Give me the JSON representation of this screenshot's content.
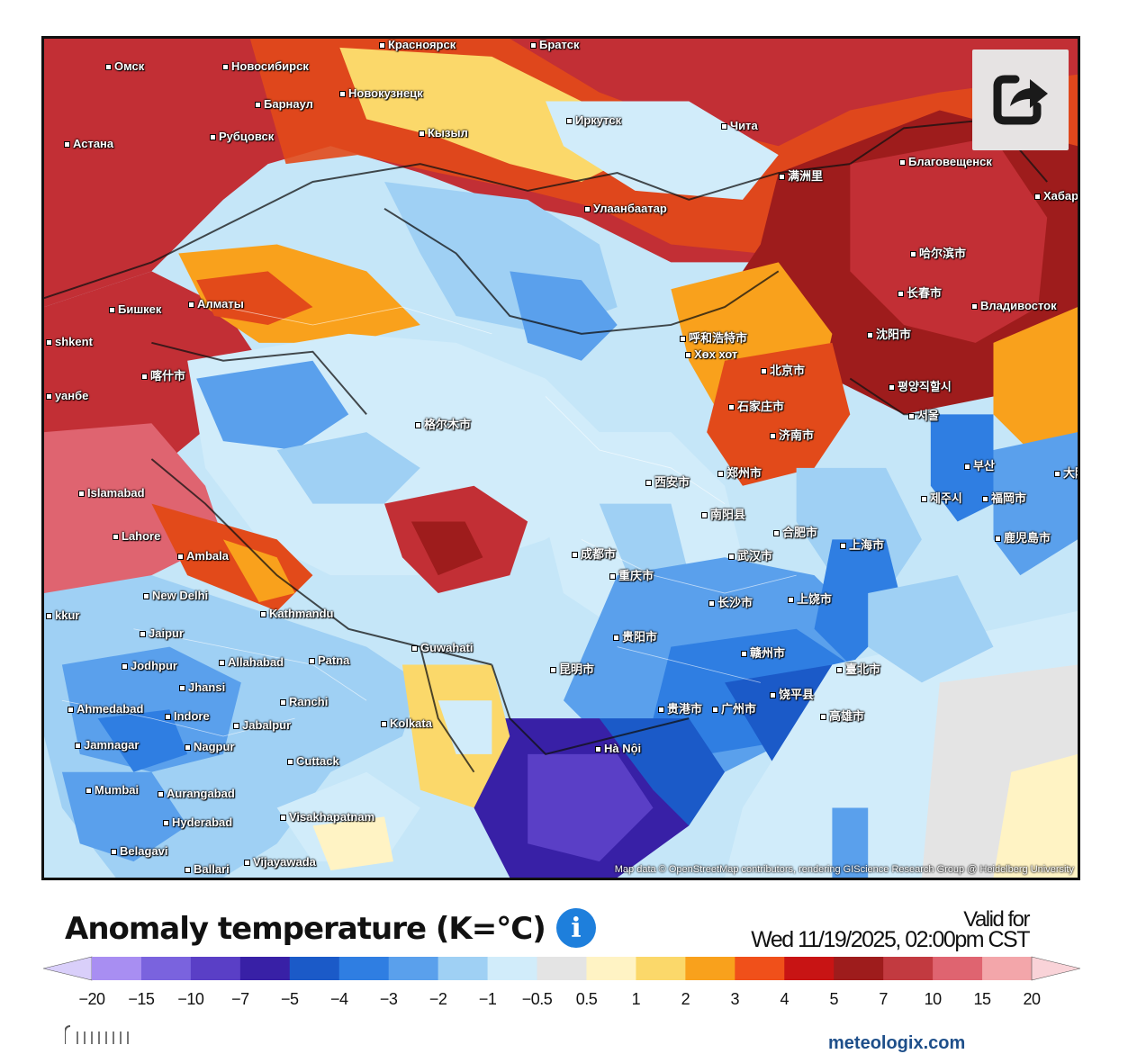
{
  "map": {
    "attribution": "Map data © OpenStreetMap contributors, rendering GIScience Research Group @ Heidelberg University",
    "cities": [
      {
        "name": "Омск"
      },
      {
        "name": "Новосибирск"
      },
      {
        "name": "Красноярск"
      },
      {
        "name": "Братск"
      },
      {
        "name": "Барнаул"
      },
      {
        "name": "Новокузнецк"
      },
      {
        "name": "Рубцовск"
      },
      {
        "name": "Астана"
      },
      {
        "name": "Кызыл"
      },
      {
        "name": "Иркутск"
      },
      {
        "name": "Чита"
      },
      {
        "name": "Улаанбаатар"
      },
      {
        "name": "满洲里"
      },
      {
        "name": "Благовещенск"
      },
      {
        "name": "Хабаро"
      },
      {
        "name": "哈尔滨市"
      },
      {
        "name": "长春市"
      },
      {
        "name": "Владивосток"
      },
      {
        "name": "沈阳市"
      },
      {
        "name": "Бишкек"
      },
      {
        "name": "Алматы"
      },
      {
        "name": "shkent"
      },
      {
        "name": "呼和浩特市"
      },
      {
        "name": "Хөх хот"
      },
      {
        "name": "北京市"
      },
      {
        "name": "평양직할시"
      },
      {
        "name": "서울"
      },
      {
        "name": "부산"
      },
      {
        "name": "大阪"
      },
      {
        "name": "福岡市"
      },
      {
        "name": "제주시"
      },
      {
        "name": "鹿児島市"
      },
      {
        "name": "石家庄市"
      },
      {
        "name": "济南市"
      },
      {
        "name": "喀什市"
      },
      {
        "name": "уанбе"
      },
      {
        "name": "格尔木市"
      },
      {
        "name": "西安市"
      },
      {
        "name": "郑州市"
      },
      {
        "name": "南阳县"
      },
      {
        "name": "合肥市"
      },
      {
        "name": "上海市"
      },
      {
        "name": "武汉市"
      },
      {
        "name": "Islamabad"
      },
      {
        "name": "Lahore"
      },
      {
        "name": "Ambala"
      },
      {
        "name": "成都市"
      },
      {
        "name": "重庆市"
      },
      {
        "name": "New Delhi"
      },
      {
        "name": "Kathmandu"
      },
      {
        "name": "长沙市"
      },
      {
        "name": "上饶市"
      },
      {
        "name": "kkur"
      },
      {
        "name": "Jaipur"
      },
      {
        "name": "Guwahati"
      },
      {
        "name": "贵阳市"
      },
      {
        "name": "Jodhpur"
      },
      {
        "name": "Allahabad"
      },
      {
        "name": "Patna"
      },
      {
        "name": "赣州市"
      },
      {
        "name": "臺北市"
      },
      {
        "name": "Jhansi"
      },
      {
        "name": "昆明市"
      },
      {
        "name": "贵港市"
      },
      {
        "name": "广州市"
      },
      {
        "name": "饶平县"
      },
      {
        "name": "Ahmedabad"
      },
      {
        "name": "Indore"
      },
      {
        "name": "Ranchi"
      },
      {
        "name": "Kolkata"
      },
      {
        "name": "高雄市"
      },
      {
        "name": "Jabalpur"
      },
      {
        "name": "Jamnagar"
      },
      {
        "name": "Nagpur"
      },
      {
        "name": "Hà Nội"
      },
      {
        "name": "Cuttack"
      },
      {
        "name": "Mumbai"
      },
      {
        "name": "Aurangabad"
      },
      {
        "name": "Hyderabad"
      },
      {
        "name": "Visakhapatnam"
      },
      {
        "name": "Belagavi"
      },
      {
        "name": "Vijayawada"
      },
      {
        "name": "Ballari"
      }
    ]
  },
  "header": {
    "title": "Anomaly temperature (K=°C)",
    "info_icon": "info-icon",
    "valid_label": "Valid for",
    "valid_date": "Wed 11/19/2025, 02:00pm CST"
  },
  "share_icon": "share-icon",
  "legend": {
    "ticks": [
      "−20",
      "−15",
      "−10",
      "−7",
      "−5",
      "−4",
      "−3",
      "−2",
      "−1",
      "−0.5",
      "0.5",
      "1",
      "2",
      "3",
      "4",
      "5",
      "7",
      "10",
      "15",
      "20"
    ],
    "colors": [
      "#a88ef2",
      "#7a63de",
      "#5a3fc6",
      "#3820a6",
      "#1b5ac8",
      "#2f7ee2",
      "#5aa0ec",
      "#9fd0f4",
      "#d1ecfa",
      "#e4e4e4",
      "#fff3c4",
      "#fbd86a",
      "#f9a11c",
      "#f0501a",
      "#c81414",
      "#9e1c1c",
      "#c23a40",
      "#df6470",
      "#f3a6aa"
    ],
    "low_cap": "#d9cffa",
    "high_cap": "#f9d3d8"
  },
  "footer": {
    "brand": "meteologix.com"
  }
}
